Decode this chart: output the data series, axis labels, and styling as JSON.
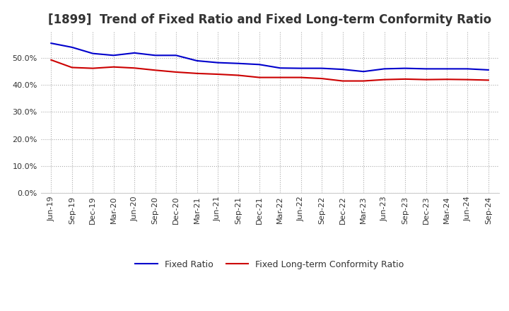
{
  "title": "[1899]  Trend of Fixed Ratio and Fixed Long-term Conformity Ratio",
  "x_labels": [
    "Jun-19",
    "Sep-19",
    "Dec-19",
    "Mar-20",
    "Jun-20",
    "Sep-20",
    "Dec-20",
    "Mar-21",
    "Jun-21",
    "Sep-21",
    "Dec-21",
    "Mar-22",
    "Jun-22",
    "Sep-22",
    "Dec-22",
    "Mar-23",
    "Jun-23",
    "Sep-23",
    "Dec-23",
    "Mar-24",
    "Jun-24",
    "Sep-24"
  ],
  "fixed_ratio": [
    0.555,
    0.54,
    0.517,
    0.51,
    0.519,
    0.51,
    0.51,
    0.49,
    0.483,
    0.48,
    0.476,
    0.463,
    0.462,
    0.462,
    0.458,
    0.45,
    0.46,
    0.462,
    0.46,
    0.46,
    0.46,
    0.456
  ],
  "fixed_lt_ratio": [
    0.493,
    0.465,
    0.462,
    0.467,
    0.463,
    0.455,
    0.448,
    0.443,
    0.44,
    0.436,
    0.428,
    0.428,
    0.428,
    0.424,
    0.415,
    0.415,
    0.42,
    0.422,
    0.42,
    0.421,
    0.42,
    0.418
  ],
  "fixed_ratio_color": "#0000cc",
  "fixed_lt_ratio_color": "#cc0000",
  "background_color": "#ffffff",
  "grid_color": "#aaaaaa",
  "ylim": [
    0.0,
    0.6
  ],
  "yticks": [
    0.0,
    0.1,
    0.2,
    0.3,
    0.4,
    0.5
  ],
  "title_fontsize": 12,
  "legend_fontsize": 9,
  "tick_fontsize": 8
}
